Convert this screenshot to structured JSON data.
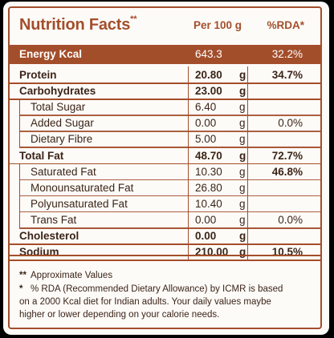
{
  "title": "Nutrition Facts",
  "title_mark": "**",
  "columns": {
    "per": "Per 100 g",
    "rda": "%RDA*"
  },
  "energy": {
    "label": "Energy Kcal",
    "value": "643.3",
    "rda": "32.2%"
  },
  "rows": [
    {
      "label": "Protein",
      "value": "20.80",
      "unit": "g",
      "rda": "34.7%",
      "bold": true,
      "sub": false
    },
    {
      "label": "Carbohydrates",
      "value": "23.00",
      "unit": "g",
      "rda": "",
      "bold": true,
      "sub": false
    },
    {
      "label": "Total Sugar",
      "value": "6.40",
      "unit": "g",
      "rda": "",
      "bold": false,
      "sub": true
    },
    {
      "label": "Added Sugar",
      "value": "0.00",
      "unit": "g",
      "rda": "0.0%",
      "bold": false,
      "sub": true
    },
    {
      "label": "Dietary Fibre",
      "value": "5.00",
      "unit": "g",
      "rda": "",
      "bold": false,
      "sub": true
    },
    {
      "label": "Total Fat",
      "value": "48.70",
      "unit": "g",
      "rda": "72.7%",
      "bold": true,
      "sub": false
    },
    {
      "label": "Saturated Fat",
      "value": "10.30",
      "unit": "g",
      "rda": "46.8%",
      "bold": false,
      "sub": true,
      "rda_bold": true
    },
    {
      "label": "Monounsaturated Fat",
      "value": "26.80",
      "unit": "g",
      "rda": "",
      "bold": false,
      "sub": true
    },
    {
      "label": "Polyunsaturated Fat",
      "value": "10.40",
      "unit": "g",
      "rda": "",
      "bold": false,
      "sub": true
    },
    {
      "label": "Trans Fat",
      "value": "0.00",
      "unit": "g",
      "rda": "0.0%",
      "bold": false,
      "sub": true
    },
    {
      "label": "Cholesterol",
      "value": "0.00",
      "unit": "g",
      "rda": "",
      "bold": true,
      "sub": false
    },
    {
      "label": "Sodium",
      "value": "210.00",
      "unit": "g",
      "rda": "10.5%",
      "bold": true,
      "sub": false
    }
  ],
  "footnotes": {
    "approx_mark": "**",
    "approx": "Approximate Values",
    "rda_mark": "*",
    "rda_lines": [
      "% RDA (Recommended Dietary Allowance) by ICMR is based",
      "on a 2000 Kcal diet for Indian adults. Your daily values maybe",
      "higher or lower depending on your calorie needs."
    ]
  }
}
